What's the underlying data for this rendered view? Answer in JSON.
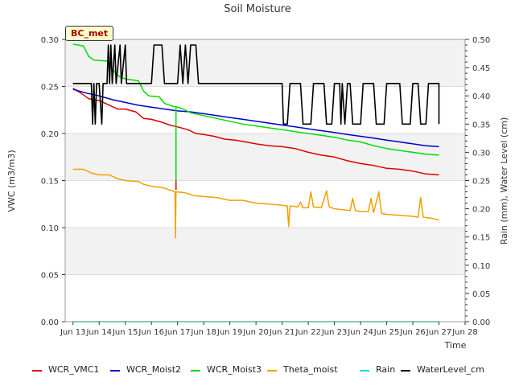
{
  "chart_data": {
    "type": "line",
    "title": "Soil Moisture",
    "xlabel": "Time",
    "ylabel": "VWC (m3/m3)",
    "y2label": "Rain (mm), Water Level (cm)",
    "badge": "BC_met",
    "xlim": [
      12.7,
      28.0
    ],
    "ylim": [
      0.0,
      0.3
    ],
    "y2lim": [
      0.0,
      0.5
    ],
    "x_ticks": [
      {
        "value": 13,
        "label": "Jun 13"
      },
      {
        "value": 14,
        "label": "Jun 14"
      },
      {
        "value": 15,
        "label": "Jun 15"
      },
      {
        "value": 16,
        "label": "Jun 16"
      },
      {
        "value": 17,
        "label": "Jun 17"
      },
      {
        "value": 18,
        "label": "Jun 18"
      },
      {
        "value": 19,
        "label": "Jun 19"
      },
      {
        "value": 20,
        "label": "Jun 20"
      },
      {
        "value": 21,
        "label": "Jun 21"
      },
      {
        "value": 22,
        "label": "Jun 22"
      },
      {
        "value": 23,
        "label": "Jun 23"
      },
      {
        "value": 24,
        "label": "Jun 24"
      },
      {
        "value": 25,
        "label": "Jun 25"
      },
      {
        "value": 26,
        "label": "Jun 26"
      },
      {
        "value": 27,
        "label": "Jun 27"
      },
      {
        "value": 28,
        "label": "Jun 28"
      }
    ],
    "y_ticks": [
      "0.00",
      "0.05",
      "0.10",
      "0.15",
      "0.20",
      "0.25",
      "0.30"
    ],
    "y2_ticks": [
      "0.00",
      "0.05",
      "0.10",
      "0.15",
      "0.20",
      "0.25",
      "0.30",
      "0.35",
      "0.40",
      "0.45",
      "0.50"
    ],
    "grid": true,
    "legend_position": "bottom",
    "series": [
      {
        "name": "WCR_VMC1",
        "color": "#dd0000",
        "axis": "left",
        "points": [
          [
            13.0,
            0.248
          ],
          [
            13.3,
            0.243
          ],
          [
            13.6,
            0.237
          ],
          [
            14.0,
            0.235
          ],
          [
            14.4,
            0.23
          ],
          [
            14.7,
            0.226
          ],
          [
            15.0,
            0.226
          ],
          [
            15.4,
            0.223
          ],
          [
            15.7,
            0.216
          ],
          [
            16.0,
            0.215
          ],
          [
            16.4,
            0.212
          ],
          [
            16.7,
            0.209
          ],
          [
            17.0,
            0.207
          ],
          [
            17.4,
            0.204
          ],
          [
            17.7,
            0.2
          ],
          [
            18.0,
            0.199
          ],
          [
            18.4,
            0.197
          ],
          [
            18.8,
            0.194
          ],
          [
            19.2,
            0.193
          ],
          [
            19.6,
            0.191
          ],
          [
            20.0,
            0.189
          ],
          [
            20.5,
            0.187
          ],
          [
            21.0,
            0.186
          ],
          [
            21.5,
            0.184
          ],
          [
            22.0,
            0.18
          ],
          [
            22.5,
            0.177
          ],
          [
            23.0,
            0.175
          ],
          [
            23.5,
            0.171
          ],
          [
            24.0,
            0.168
          ],
          [
            24.5,
            0.166
          ],
          [
            25.0,
            0.163
          ],
          [
            25.5,
            0.162
          ],
          [
            26.0,
            0.16
          ],
          [
            26.5,
            0.157
          ],
          [
            27.0,
            0.156
          ]
        ]
      },
      {
        "name": "WCR_Moist2",
        "color": "#0000cc",
        "axis": "left",
        "points": [
          [
            13.0,
            0.247
          ],
          [
            13.5,
            0.243
          ],
          [
            14.0,
            0.24
          ],
          [
            14.5,
            0.236
          ],
          [
            15.0,
            0.233
          ],
          [
            15.5,
            0.23
          ],
          [
            16.0,
            0.228
          ],
          [
            16.5,
            0.226
          ],
          [
            17.0,
            0.224
          ],
          [
            17.5,
            0.223
          ],
          [
            18.0,
            0.221
          ],
          [
            18.5,
            0.219
          ],
          [
            19.0,
            0.217
          ],
          [
            19.5,
            0.215
          ],
          [
            20.0,
            0.213
          ],
          [
            20.5,
            0.211
          ],
          [
            21.0,
            0.209
          ],
          [
            21.5,
            0.207
          ],
          [
            22.0,
            0.205
          ],
          [
            22.5,
            0.203
          ],
          [
            23.0,
            0.201
          ],
          [
            23.5,
            0.199
          ],
          [
            24.0,
            0.197
          ],
          [
            24.5,
            0.195
          ],
          [
            25.0,
            0.193
          ],
          [
            25.5,
            0.191
          ],
          [
            26.0,
            0.189
          ],
          [
            26.5,
            0.187
          ],
          [
            27.0,
            0.186
          ]
        ]
      },
      {
        "name": "WCR_Moist3",
        "color": "#00dd00",
        "axis": "left",
        "points": [
          [
            13.0,
            0.295
          ],
          [
            13.4,
            0.293
          ],
          [
            13.6,
            0.282
          ],
          [
            13.8,
            0.278
          ],
          [
            14.3,
            0.277
          ],
          [
            14.6,
            0.265
          ],
          [
            14.8,
            0.26
          ],
          [
            15.0,
            0.258
          ],
          [
            15.5,
            0.256
          ],
          [
            15.7,
            0.245
          ],
          [
            15.9,
            0.24
          ],
          [
            16.3,
            0.239
          ],
          [
            16.5,
            0.232
          ],
          [
            16.8,
            0.229
          ],
          [
            17.0,
            0.228
          ],
          [
            17.3,
            0.225
          ],
          [
            17.5,
            0.222
          ],
          [
            18.0,
            0.219
          ],
          [
            18.5,
            0.216
          ],
          [
            19.0,
            0.213
          ],
          [
            19.5,
            0.21
          ],
          [
            20.0,
            0.208
          ],
          [
            20.5,
            0.206
          ],
          [
            21.0,
            0.204
          ],
          [
            21.5,
            0.202
          ],
          [
            22.0,
            0.2
          ],
          [
            22.5,
            0.198
          ],
          [
            23.0,
            0.196
          ],
          [
            23.5,
            0.193
          ],
          [
            24.0,
            0.191
          ],
          [
            24.5,
            0.187
          ],
          [
            25.0,
            0.184
          ],
          [
            25.5,
            0.182
          ],
          [
            26.0,
            0.18
          ],
          [
            26.5,
            0.178
          ],
          [
            27.0,
            0.177
          ]
        ]
      },
      {
        "name": "Theta_moist",
        "color": "#f0a000",
        "axis": "left",
        "points": [
          [
            13.0,
            0.162
          ],
          [
            13.4,
            0.162
          ],
          [
            13.7,
            0.158
          ],
          [
            14.0,
            0.156
          ],
          [
            14.4,
            0.156
          ],
          [
            14.7,
            0.152
          ],
          [
            15.0,
            0.15
          ],
          [
            15.5,
            0.149
          ],
          [
            15.7,
            0.146
          ],
          [
            16.0,
            0.144
          ],
          [
            16.5,
            0.142
          ],
          [
            16.8,
            0.139
          ],
          [
            16.9,
            0.138
          ],
          [
            16.92,
            0.089
          ],
          [
            16.94,
            0.138
          ],
          [
            17.3,
            0.137
          ],
          [
            17.6,
            0.134
          ],
          [
            18.0,
            0.133
          ],
          [
            18.5,
            0.132
          ],
          [
            19.0,
            0.129
          ],
          [
            19.5,
            0.129
          ],
          [
            20.0,
            0.126
          ],
          [
            20.5,
            0.125
          ],
          [
            20.9,
            0.124
          ],
          [
            21.2,
            0.123
          ],
          [
            21.25,
            0.101
          ],
          [
            21.3,
            0.123
          ],
          [
            21.6,
            0.122
          ],
          [
            21.7,
            0.127
          ],
          [
            21.8,
            0.121
          ],
          [
            22.0,
            0.121
          ],
          [
            22.1,
            0.138
          ],
          [
            22.2,
            0.122
          ],
          [
            22.5,
            0.121
          ],
          [
            22.7,
            0.139
          ],
          [
            22.8,
            0.122
          ],
          [
            23.0,
            0.12
          ],
          [
            23.3,
            0.119
          ],
          [
            23.6,
            0.118
          ],
          [
            23.7,
            0.131
          ],
          [
            23.8,
            0.118
          ],
          [
            24.0,
            0.117
          ],
          [
            24.3,
            0.117
          ],
          [
            24.4,
            0.131
          ],
          [
            24.5,
            0.116
          ],
          [
            24.7,
            0.138
          ],
          [
            24.8,
            0.115
          ],
          [
            25.0,
            0.114
          ],
          [
            25.5,
            0.113
          ],
          [
            26.0,
            0.112
          ],
          [
            26.2,
            0.111
          ],
          [
            26.3,
            0.132
          ],
          [
            26.4,
            0.111
          ],
          [
            26.7,
            0.11
          ],
          [
            27.0,
            0.108
          ]
        ]
      },
      {
        "name": "Rain",
        "color": "#00e0e0",
        "axis": "right",
        "points": [
          [
            13.0,
            0.0
          ],
          [
            27.0,
            0.0
          ]
        ]
      },
      {
        "name": "WaterLevel_cm",
        "color": "#000000",
        "axis": "right",
        "points": [
          [
            13.0,
            0.422
          ],
          [
            13.7,
            0.422
          ],
          [
            13.75,
            0.35
          ],
          [
            13.8,
            0.422
          ],
          [
            13.85,
            0.35
          ],
          [
            13.9,
            0.422
          ],
          [
            14.0,
            0.422
          ],
          [
            14.1,
            0.35
          ],
          [
            14.15,
            0.422
          ],
          [
            14.3,
            0.422
          ],
          [
            14.35,
            0.49
          ],
          [
            14.4,
            0.422
          ],
          [
            14.45,
            0.49
          ],
          [
            14.5,
            0.422
          ],
          [
            14.6,
            0.49
          ],
          [
            14.65,
            0.422
          ],
          [
            14.8,
            0.49
          ],
          [
            14.85,
            0.422
          ],
          [
            15.0,
            0.49
          ],
          [
            15.05,
            0.422
          ],
          [
            16.0,
            0.422
          ],
          [
            16.1,
            0.49
          ],
          [
            16.4,
            0.49
          ],
          [
            16.5,
            0.422
          ],
          [
            17.0,
            0.422
          ],
          [
            17.1,
            0.49
          ],
          [
            17.2,
            0.422
          ],
          [
            17.3,
            0.49
          ],
          [
            17.4,
            0.422
          ],
          [
            17.5,
            0.49
          ],
          [
            17.7,
            0.49
          ],
          [
            17.8,
            0.422
          ],
          [
            21.0,
            0.422
          ],
          [
            21.05,
            0.35
          ],
          [
            21.2,
            0.35
          ],
          [
            21.3,
            0.422
          ],
          [
            21.7,
            0.422
          ],
          [
            21.8,
            0.35
          ],
          [
            22.1,
            0.35
          ],
          [
            22.2,
            0.422
          ],
          [
            22.6,
            0.422
          ],
          [
            22.7,
            0.35
          ],
          [
            22.9,
            0.35
          ],
          [
            23.0,
            0.422
          ],
          [
            23.2,
            0.422
          ],
          [
            23.25,
            0.35
          ],
          [
            23.3,
            0.422
          ],
          [
            23.4,
            0.35
          ],
          [
            23.5,
            0.422
          ],
          [
            23.6,
            0.422
          ],
          [
            23.7,
            0.35
          ],
          [
            24.0,
            0.35
          ],
          [
            24.1,
            0.422
          ],
          [
            24.5,
            0.422
          ],
          [
            24.6,
            0.35
          ],
          [
            24.9,
            0.35
          ],
          [
            25.0,
            0.422
          ],
          [
            25.5,
            0.422
          ],
          [
            25.6,
            0.35
          ],
          [
            25.9,
            0.35
          ],
          [
            26.0,
            0.422
          ],
          [
            26.2,
            0.422
          ],
          [
            26.3,
            0.35
          ],
          [
            26.5,
            0.35
          ],
          [
            26.6,
            0.422
          ],
          [
            27.0,
            0.422
          ],
          [
            27.0,
            0.35
          ]
        ]
      }
    ]
  }
}
